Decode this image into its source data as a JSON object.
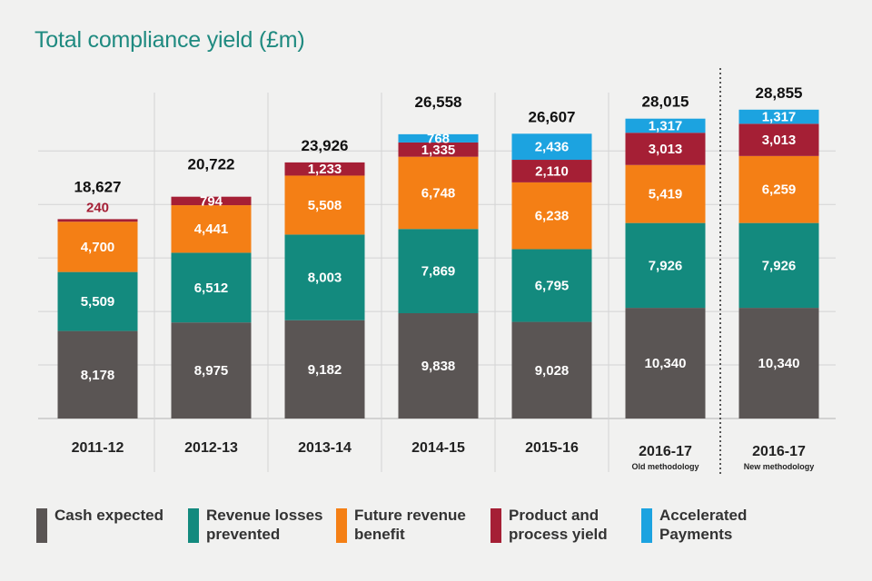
{
  "chart_data": {
    "type": "bar",
    "stacked": true,
    "title": "Total compliance yield (£m)",
    "xlabel": "",
    "ylabel": "",
    "ylim": [
      0,
      30000
    ],
    "grid": true,
    "categories": [
      "2011-12",
      "2012-13",
      "2013-14",
      "2014-15",
      "2015-16",
      "2016-17",
      "2016-17"
    ],
    "category_notes": [
      "",
      "",
      "",
      "",
      "",
      "Old methodology",
      "New methodology"
    ],
    "totals": [
      "18,627",
      "20,722",
      "23,926",
      "26,558",
      "26,607",
      "28,015",
      "28,855"
    ],
    "series": [
      {
        "name": "Cash expected",
        "color": "#5a5554",
        "label_color": "#ffffff",
        "values": [
          8178,
          8975,
          9182,
          9838,
          9028,
          10340,
          10340
        ],
        "labels": [
          "8,178",
          "8,975",
          "9,182",
          "9,838",
          "9,028",
          "10,340",
          "10,340"
        ]
      },
      {
        "name": "Revenue losses prevented",
        "color": "#138a7e",
        "label_color": "#ffffff",
        "values": [
          5509,
          6512,
          8003,
          7869,
          6795,
          7926,
          7926
        ],
        "labels": [
          "5,509",
          "6,512",
          "8,003",
          "7,869",
          "6,795",
          "7,926",
          "7,926"
        ]
      },
      {
        "name": "Future revenue benefit",
        "color": "#f47f15",
        "label_color": "#ffffff",
        "values": [
          4700,
          4441,
          5508,
          6748,
          6238,
          5419,
          6259
        ],
        "labels": [
          "4,700",
          "4,441",
          "5,508",
          "6,748",
          "6,238",
          "5,419",
          "6,259"
        ]
      },
      {
        "name": "Product and process yield",
        "color": "#a51f35",
        "label_color": "#ffffff",
        "values": [
          240,
          794,
          1233,
          1335,
          2110,
          3013,
          3013
        ],
        "labels": [
          "240",
          "794",
          "1,233",
          "1,335",
          "2,110",
          "3,013",
          "3,013"
        ]
      },
      {
        "name": "Accelerated Payments",
        "color": "#1ca3e0",
        "label_color": "#ffffff",
        "values": [
          0,
          0,
          0,
          768,
          2436,
          1317,
          1317
        ],
        "labels": [
          "",
          "",
          "",
          "768",
          "2,436",
          "1,317",
          "1,317"
        ]
      }
    ],
    "legend": [
      "Cash expected",
      "Revenue losses\nprevented",
      "Future revenue\nbenefit",
      "Product and\nprocess yield",
      "Accelerated\nPayments"
    ],
    "legend_position": "bottom"
  }
}
